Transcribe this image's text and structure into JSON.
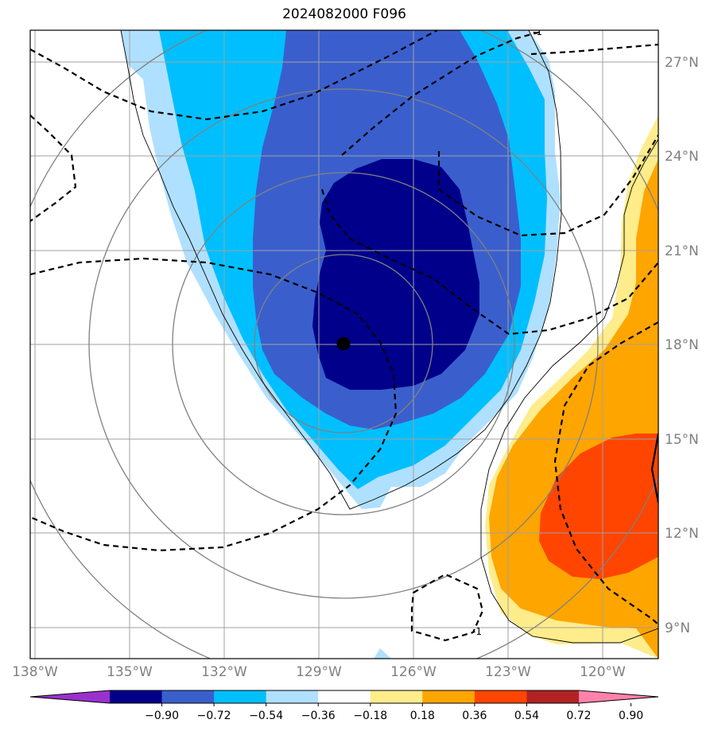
{
  "title": "2024082000 F096",
  "map": {
    "lon_labels": [
      "138°W",
      "135°W",
      "132°W",
      "129°W",
      "126°W",
      "123°W",
      "120°W"
    ],
    "lat_labels": [
      "27°N",
      "24°N",
      "21°N",
      "18°N",
      "15°N",
      "12°N",
      "9°N"
    ],
    "label_color": "#808080"
  },
  "colorbar": {
    "tick_labels": [
      "−0.90",
      "−0.72",
      "−0.54",
      "−0.36",
      "−0.18",
      "0.18",
      "0.36",
      "0.54",
      "0.72",
      "0.90"
    ],
    "colors": [
      "#9932cc",
      "#00008b",
      "#3a5fcd",
      "#00bfff",
      "#b0e0ff",
      "#ffffff",
      "#ffec8b",
      "#ffa500",
      "#ff4500",
      "#b22222",
      "#ff82ab"
    ]
  },
  "contour_labels": [
    "-1",
    "-1"
  ],
  "storm_center_icon": "filled-circle-icon"
}
